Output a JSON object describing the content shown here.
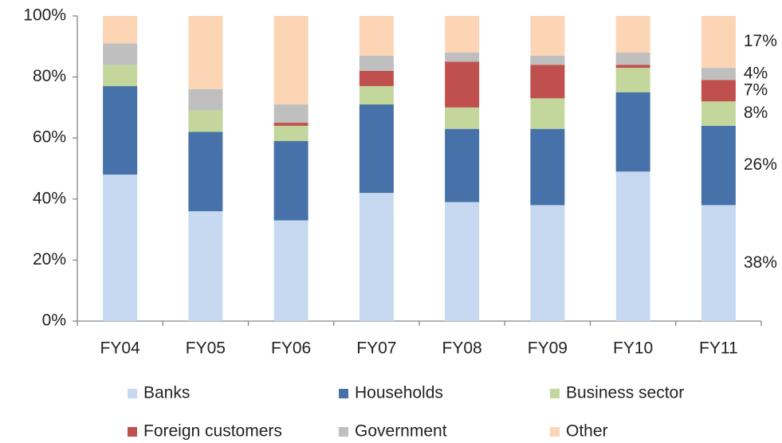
{
  "chart_data": {
    "type": "stacked_bar",
    "categories": [
      "FY04",
      "FY05",
      "FY06",
      "FY07",
      "FY08",
      "FY09",
      "FY10",
      "FY11"
    ],
    "series": [
      {
        "name": "Banks",
        "color": "#c6d9f1",
        "values": [
          48,
          36,
          33,
          42,
          39,
          38,
          49,
          38
        ],
        "value_labels": [
          null,
          null,
          null,
          null,
          null,
          null,
          null,
          "38%"
        ]
      },
      {
        "name": "Households",
        "color": "#4672a9",
        "values": [
          29,
          26,
          26,
          29,
          24,
          25,
          26,
          26
        ],
        "value_labels": [
          null,
          null,
          null,
          null,
          null,
          null,
          null,
          "26%"
        ]
      },
      {
        "name": "Business sector",
        "color": "#c3d69b",
        "values": [
          7,
          7,
          5,
          6,
          7,
          10,
          8,
          8
        ],
        "value_labels": [
          null,
          null,
          null,
          null,
          null,
          null,
          null,
          "8%"
        ]
      },
      {
        "name": "Foreign customers",
        "color": "#c0504d",
        "values": [
          0,
          0,
          1,
          5,
          15,
          11,
          1,
          7
        ],
        "value_labels": [
          null,
          null,
          null,
          null,
          null,
          null,
          null,
          "7%"
        ]
      },
      {
        "name": "Government",
        "color": "#bfbfbf",
        "values": [
          7,
          7,
          6,
          5,
          3,
          3,
          4,
          4
        ],
        "value_labels": [
          null,
          null,
          null,
          null,
          null,
          null,
          null,
          "4%"
        ]
      },
      {
        "name": "Other",
        "color": "#fcd5b5",
        "values": [
          9,
          24,
          29,
          13,
          12,
          13,
          12,
          17
        ],
        "value_labels": [
          null,
          null,
          null,
          null,
          null,
          null,
          null,
          "17%"
        ]
      }
    ],
    "ylim": [
      0,
      100
    ],
    "yticks": [
      {
        "value": 0,
        "label": "0%"
      },
      {
        "value": 20,
        "label": "20%"
      },
      {
        "value": 40,
        "label": "40%"
      },
      {
        "value": 60,
        "label": "60%"
      },
      {
        "value": 80,
        "label": "80%"
      },
      {
        "value": 100,
        "label": "100%"
      }
    ],
    "grid": false,
    "legend": "bottom"
  }
}
